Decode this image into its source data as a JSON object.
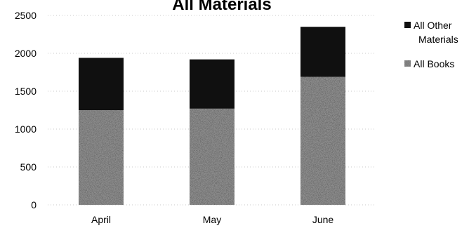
{
  "chart_data": {
    "type": "bar",
    "stacked": true,
    "title": "All Materials",
    "categories": [
      "April",
      "May",
      "June"
    ],
    "series": [
      {
        "name": "All Books",
        "values": [
          1250,
          1270,
          1690
        ],
        "color": "#8a8a8a",
        "texture": "speckled"
      },
      {
        "name": "All Other Materials",
        "values": [
          690,
          650,
          660
        ],
        "color": "#101010"
      }
    ],
    "ylim": [
      0,
      2500
    ],
    "yticks": [
      "0",
      "500",
      "1000",
      "1500",
      "2000",
      "2500"
    ],
    "ytick_values": [
      0,
      500,
      1000,
      1500,
      2000,
      2500
    ],
    "grid": true,
    "legend_position": "right",
    "legend": [
      {
        "label_lines": [
          "All Other",
          "Materials"
        ],
        "series": "All Other Materials"
      },
      {
        "label_lines": [
          "All Books"
        ],
        "series": "All Books"
      }
    ]
  }
}
